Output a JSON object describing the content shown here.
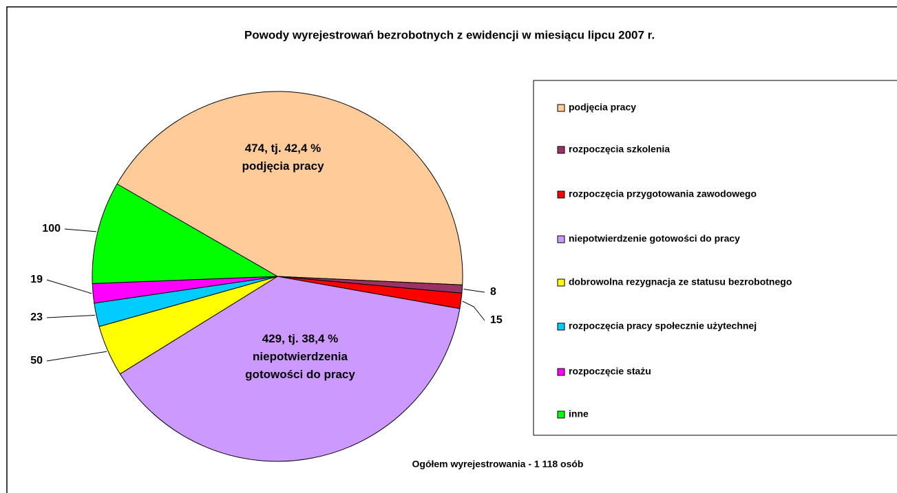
{
  "chart_data": {
    "type": "pie",
    "title": "Powody wyrejestrowań bezrobotnych z ewidencji w miesiącu lipcu 2007 r.",
    "footer": "Ogółem wyrejestrowania - 1 118 osób",
    "categories": [
      "podjęcia pracy",
      "rozpoczęcia szkolenia",
      "rozpoczęcia przygotowania zawodowego",
      "niepotwierdzenie gotowości do pracy",
      "dobrowolna rezygnacja ze statusu bezrobotnego",
      "rozpoczęcia pracy społecznie użytechnej",
      "rozpoczęcie stażu",
      "inne"
    ],
    "values": [
      474,
      8,
      15,
      429,
      50,
      23,
      19,
      100
    ],
    "value_labels": [
      "474, tj. 42,4 %\npodjęcia pracy",
      "8",
      "15",
      "429, tj. 38,4 %\nniepotwierdzenia\ngotowości do pracy",
      "50",
      "23",
      "19",
      "100"
    ],
    "colors": [
      "#FFCC99",
      "#993366",
      "#FF0000",
      "#CC99FF",
      "#FFFF00",
      "#00CCFF",
      "#FF00FF",
      "#00FF00"
    ],
    "legend": "right"
  }
}
